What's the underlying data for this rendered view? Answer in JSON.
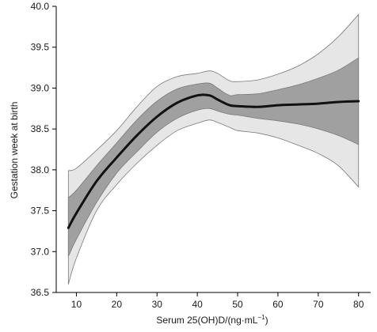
{
  "chart_data": {
    "type": "line",
    "title": "",
    "xlabel_main": "Serum 25(OH)D/(ng·mL",
    "xlabel_sup": "−1",
    "xlabel_end": ")",
    "ylabel": "Gestation week at birth",
    "xlim": [
      5,
      83
    ],
    "ylim": [
      36.5,
      40.0
    ],
    "x_ticks": [
      10,
      20,
      30,
      40,
      50,
      60,
      70,
      80
    ],
    "y_ticks": [
      "36.5",
      "37.0",
      "37.5",
      "38.0",
      "38.5",
      "39.0",
      "39.5",
      "40.0"
    ],
    "grid": false,
    "legend": "none",
    "colors": {
      "outer_band": "#e6e6e6",
      "inner_band": "#a0a0a0",
      "band_edge": "#7a7a7a",
      "line": "#111111"
    },
    "x": [
      8,
      10,
      15,
      20,
      25,
      30,
      35,
      40,
      43,
      45,
      48,
      50,
      55,
      60,
      65,
      70,
      75,
      80
    ],
    "series": [
      {
        "role": "fit",
        "values": [
          37.29,
          37.47,
          37.86,
          38.15,
          38.42,
          38.65,
          38.82,
          38.91,
          38.91,
          38.86,
          38.79,
          38.78,
          38.77,
          38.79,
          38.8,
          38.81,
          38.83,
          38.84
        ]
      },
      {
        "role": "ci_inner_upper",
        "values": [
          37.66,
          37.75,
          38.05,
          38.33,
          38.61,
          38.84,
          38.99,
          39.05,
          39.06,
          39.0,
          38.91,
          38.92,
          38.93,
          38.98,
          39.04,
          39.12,
          39.22,
          39.37
        ]
      },
      {
        "role": "ci_inner_lower",
        "values": [
          36.94,
          37.15,
          37.6,
          37.96,
          38.22,
          38.46,
          38.63,
          38.73,
          38.75,
          38.72,
          38.68,
          38.67,
          38.63,
          38.6,
          38.56,
          38.5,
          38.42,
          38.31
        ]
      },
      {
        "role": "ci_outer_upper",
        "values": [
          37.99,
          38.02,
          38.24,
          38.48,
          38.77,
          39.02,
          39.14,
          39.18,
          39.21,
          39.18,
          39.09,
          39.08,
          39.1,
          39.17,
          39.27,
          39.42,
          39.63,
          39.9
        ]
      },
      {
        "role": "ci_outer_lower",
        "values": [
          36.6,
          36.92,
          37.5,
          37.82,
          38.08,
          38.3,
          38.48,
          38.57,
          38.61,
          38.58,
          38.52,
          38.48,
          38.45,
          38.39,
          38.3,
          38.2,
          38.05,
          37.79
        ]
      }
    ]
  }
}
